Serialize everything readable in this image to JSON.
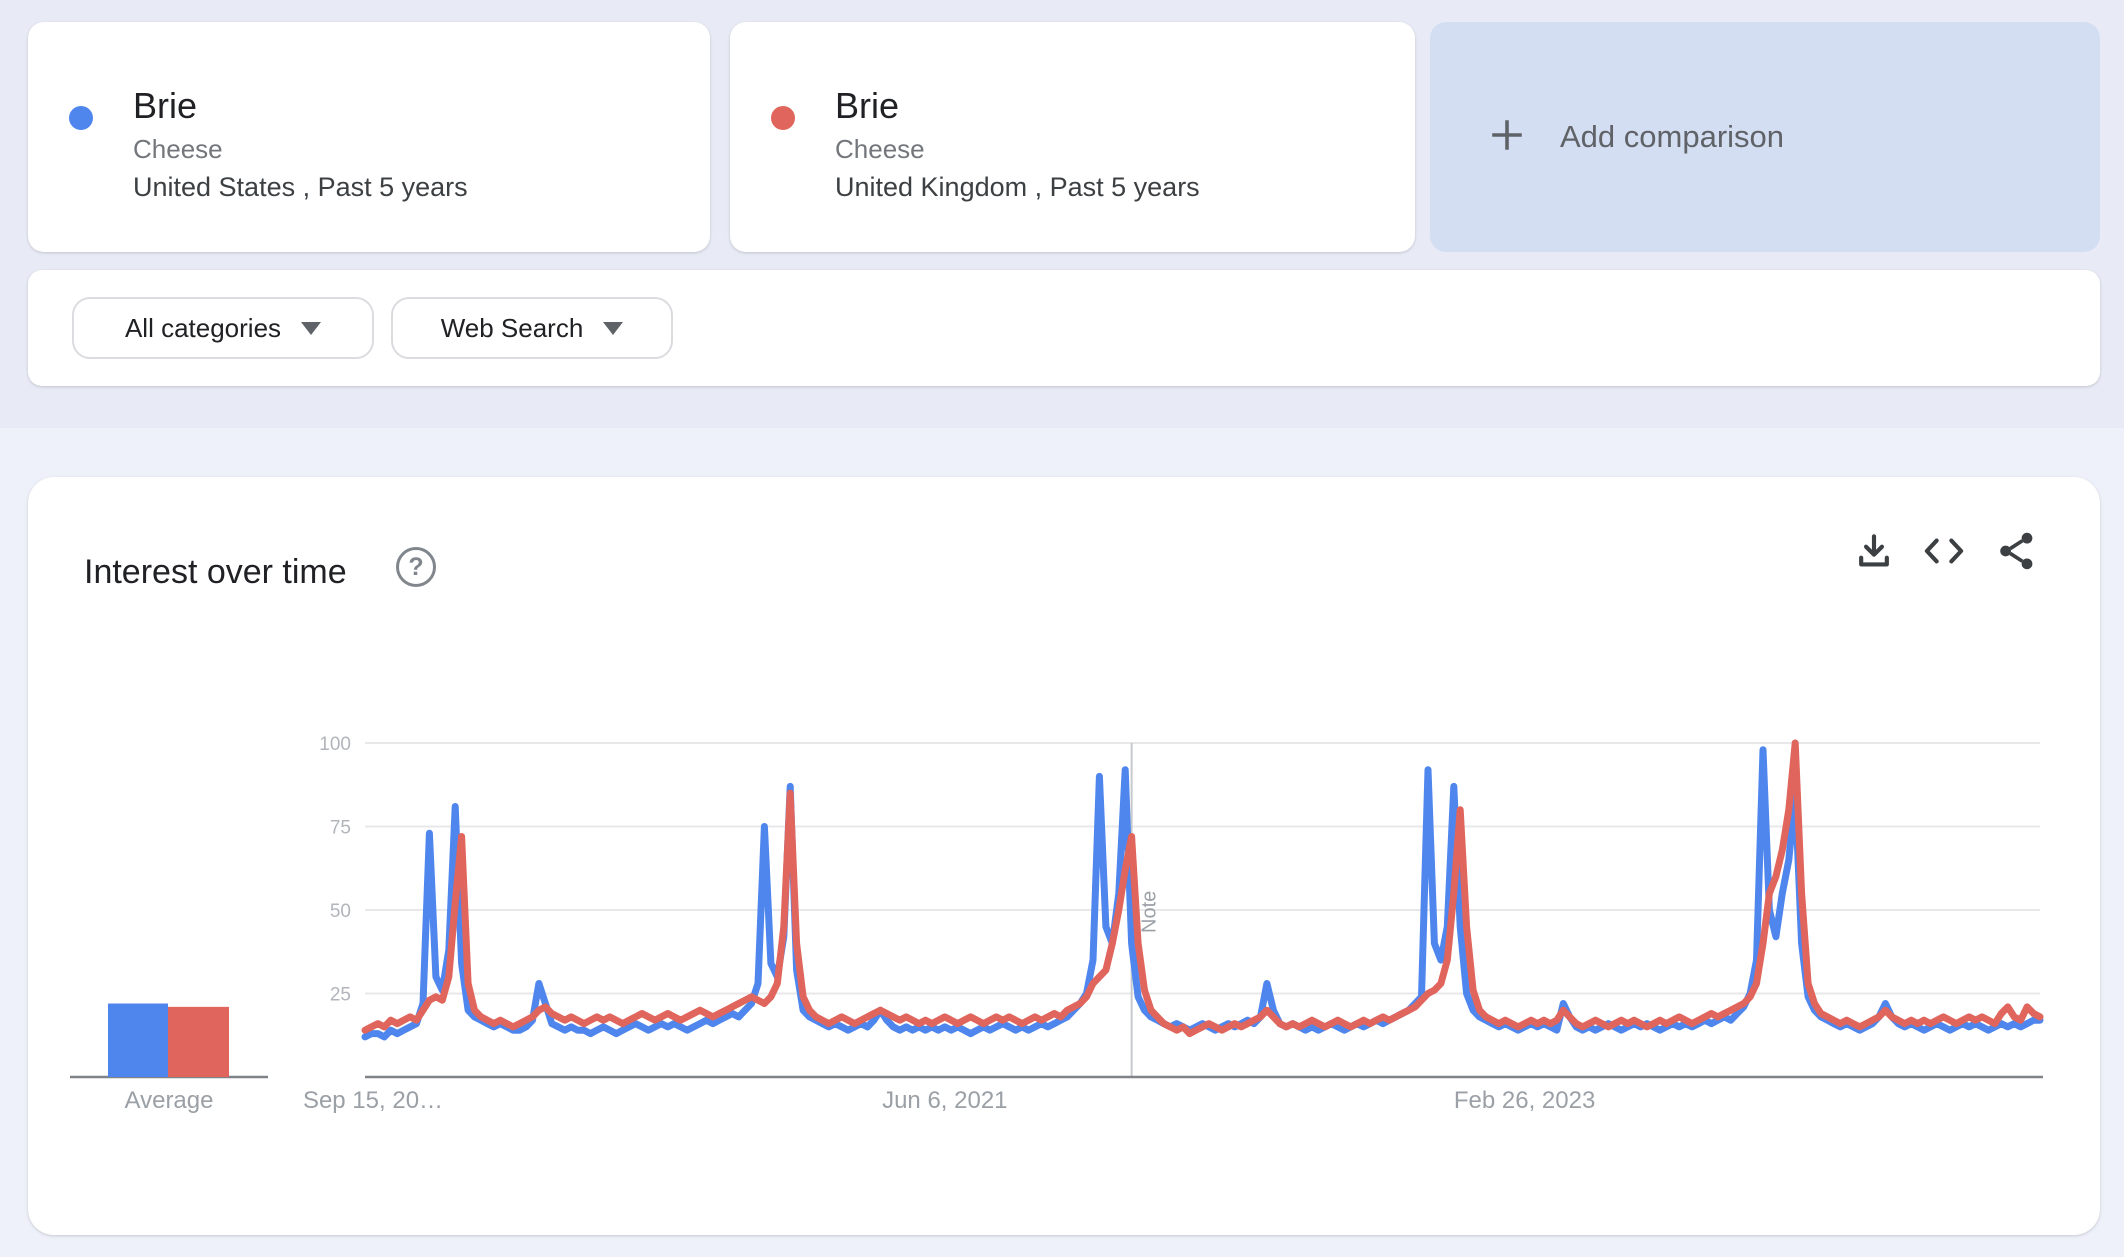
{
  "comparisons": [
    {
      "term": "Brie",
      "category": "Cheese",
      "scope": "United States , Past 5 years",
      "color": "#4e86ee"
    },
    {
      "term": "Brie",
      "category": "Cheese",
      "scope": "United Kingdom , Past 5 years",
      "color": "#e0655c"
    }
  ],
  "add_comparison": {
    "label": "Add comparison"
  },
  "filters": {
    "category": {
      "label": "All categories"
    },
    "search_type": {
      "label": "Web Search"
    }
  },
  "chart_card": {
    "title": "Interest over time",
    "help_glyph": "?",
    "actions": [
      "download-icon",
      "embed-icon",
      "share-icon"
    ]
  },
  "average_chart": {
    "label": "Average",
    "bars": [
      {
        "series": "Brie (United States)",
        "value": 22,
        "color": "#4e86ee"
      },
      {
        "series": "Brie (United Kingdom)",
        "value": 21,
        "color": "#e0655c"
      }
    ]
  },
  "chart_data": {
    "type": "line",
    "title": "Interest over time",
    "legend_position": "none",
    "x_axis": {
      "unit": "weeks",
      "start_date": "Sep 15, 2019",
      "tick_labels": [
        {
          "label": "Sep 15, 20…",
          "week": 0
        },
        {
          "label": "Jun 6, 2021",
          "week": 90
        },
        {
          "label": "Feb 26, 2023",
          "week": 180
        }
      ]
    },
    "y_axis": {
      "ticks": [
        25,
        50,
        75,
        100
      ],
      "range": [
        0,
        100
      ],
      "grid": true
    },
    "note_marker": {
      "week": 119,
      "label": "Note"
    },
    "series": [
      {
        "name": "Brie: (United States)",
        "color": "#4e86ee",
        "values": [
          12,
          13,
          13,
          12,
          14,
          13,
          14,
          15,
          16,
          22,
          73,
          30,
          26,
          38,
          81,
          34,
          20,
          18,
          17,
          16,
          15,
          16,
          15,
          14,
          14,
          15,
          17,
          28,
          22,
          16,
          15,
          14,
          15,
          14,
          14,
          13,
          14,
          15,
          14,
          13,
          14,
          15,
          16,
          15,
          14,
          15,
          16,
          15,
          16,
          15,
          14,
          15,
          16,
          17,
          16,
          17,
          18,
          19,
          18,
          20,
          22,
          28,
          75,
          34,
          30,
          42,
          87,
          32,
          20,
          18,
          17,
          16,
          15,
          16,
          15,
          14,
          15,
          16,
          15,
          17,
          20,
          17,
          15,
          14,
          15,
          14,
          15,
          14,
          15,
          14,
          15,
          14,
          15,
          14,
          13,
          14,
          15,
          14,
          15,
          16,
          15,
          14,
          15,
          14,
          15,
          16,
          15,
          16,
          17,
          18,
          20,
          22,
          25,
          35,
          90,
          45,
          40,
          55,
          92,
          40,
          24,
          20,
          18,
          17,
          16,
          15,
          16,
          15,
          14,
          15,
          16,
          15,
          14,
          15,
          16,
          15,
          16,
          17,
          16,
          18,
          28,
          20,
          16,
          15,
          16,
          15,
          14,
          15,
          14,
          15,
          16,
          15,
          14,
          15,
          16,
          15,
          16,
          17,
          16,
          17,
          18,
          19,
          20,
          22,
          24,
          92,
          40,
          35,
          45,
          87,
          45,
          25,
          20,
          18,
          17,
          16,
          15,
          16,
          15,
          14,
          15,
          16,
          15,
          16,
          15,
          14,
          22,
          18,
          15,
          14,
          15,
          14,
          15,
          16,
          15,
          14,
          15,
          16,
          15,
          16,
          15,
          14,
          15,
          16,
          15,
          16,
          15,
          16,
          17,
          16,
          17,
          18,
          17,
          19,
          21,
          25,
          35,
          98,
          50,
          42,
          55,
          65,
          85,
          40,
          24,
          20,
          18,
          17,
          16,
          15,
          16,
          15,
          14,
          15,
          16,
          18,
          22,
          18,
          16,
          15,
          16,
          15,
          14,
          15,
          16,
          15,
          14,
          15,
          16,
          15,
          16,
          15,
          14,
          15,
          16,
          15,
          16,
          15,
          16,
          17,
          17
        ]
      },
      {
        "name": "Brie: (United Kingdom)",
        "color": "#e0655c",
        "values": [
          14,
          15,
          16,
          15,
          17,
          16,
          17,
          18,
          17,
          20,
          23,
          24,
          23,
          30,
          52,
          72,
          28,
          20,
          18,
          17,
          16,
          17,
          16,
          15,
          16,
          17,
          18,
          20,
          21,
          19,
          18,
          17,
          18,
          17,
          16,
          17,
          18,
          17,
          18,
          17,
          16,
          17,
          18,
          19,
          18,
          17,
          18,
          19,
          18,
          17,
          18,
          19,
          20,
          19,
          18,
          19,
          20,
          21,
          22,
          23,
          24,
          23,
          22,
          24,
          28,
          45,
          85,
          40,
          24,
          20,
          18,
          17,
          16,
          17,
          18,
          17,
          16,
          17,
          18,
          19,
          20,
          19,
          18,
          17,
          18,
          17,
          16,
          17,
          16,
          17,
          18,
          17,
          16,
          17,
          18,
          17,
          16,
          17,
          18,
          17,
          18,
          17,
          16,
          17,
          18,
          17,
          18,
          19,
          18,
          20,
          21,
          22,
          24,
          28,
          30,
          32,
          40,
          50,
          62,
          72,
          40,
          26,
          20,
          18,
          16,
          15,
          14,
          15,
          13,
          14,
          15,
          16,
          15,
          14,
          15,
          16,
          15,
          16,
          17,
          18,
          20,
          18,
          16,
          15,
          16,
          15,
          16,
          17,
          16,
          15,
          16,
          17,
          16,
          15,
          16,
          17,
          16,
          17,
          18,
          17,
          18,
          19,
          20,
          21,
          23,
          25,
          26,
          28,
          35,
          55,
          80,
          45,
          26,
          20,
          18,
          17,
          16,
          17,
          16,
          15,
          16,
          17,
          16,
          17,
          16,
          17,
          20,
          18,
          16,
          15,
          16,
          17,
          16,
          15,
          16,
          17,
          16,
          17,
          16,
          15,
          16,
          17,
          16,
          17,
          18,
          17,
          16,
          17,
          18,
          19,
          18,
          19,
          20,
          21,
          22,
          24,
          28,
          40,
          55,
          60,
          68,
          80,
          100,
          55,
          28,
          22,
          19,
          18,
          17,
          16,
          17,
          16,
          15,
          16,
          17,
          18,
          20,
          18,
          17,
          16,
          17,
          16,
          17,
          16,
          17,
          18,
          17,
          16,
          17,
          18,
          17,
          18,
          17,
          16,
          19,
          21,
          18,
          17,
          21,
          19,
          18
        ]
      }
    ]
  }
}
